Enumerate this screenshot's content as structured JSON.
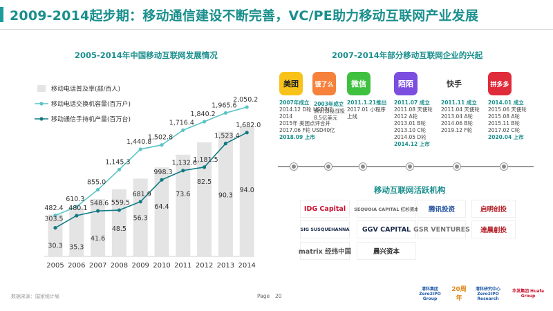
{
  "header": {
    "title": "2009-2014起步期：移动通信建设不断完善，VC/PE助力移动互联网产业发展"
  },
  "left": {
    "section_title": "2005-2014年中国移动互联网发展情况"
  },
  "right": {
    "section_title": "2007-2014年部分移动互联网企业的兴起",
    "investors_title": "移动互联网活跃机构"
  },
  "chart_data": {
    "type": "bar",
    "categories": [
      "2005",
      "2006",
      "2007",
      "2008",
      "2009",
      "2010",
      "2011",
      "2012",
      "2013",
      "2014"
    ],
    "series": [
      {
        "name": "移动电话普及率(部/百人)",
        "kind": "bar",
        "values": [
          30.3,
          35.3,
          41.6,
          48.5,
          56.3,
          64.4,
          73.6,
          82.5,
          90.3,
          94.0
        ]
      },
      {
        "name": "移动电话交换机容量(百万户)",
        "kind": "line",
        "values": [
          482.4,
          610.3,
          855.0,
          1145.3,
          1440.8,
          1502.8,
          1716.4,
          1840.2,
          1965.6,
          2050.2
        ]
      },
      {
        "name": "移动通信手持机产量(百万台)",
        "kind": "line",
        "values": [
          303.5,
          480.1,
          548.6,
          559.5,
          681.9,
          998.3,
          1132.6,
          1181.5,
          1523.4,
          1682.0
        ]
      }
    ],
    "value_labels": {
      "bars": [
        "30.3",
        "35.3",
        "41.6",
        "48.5",
        "56.3",
        "64.4",
        "73.6",
        "82.5",
        "90.3",
        "94.0"
      ],
      "line1": [
        "482.4",
        "610.3",
        "855.0",
        "1,145.3",
        "1,440.8",
        "1,502.8",
        "1,716.4",
        "1,840.2",
        "1,965.6",
        "2,050.2"
      ],
      "line2": [
        "303.5",
        "480.1",
        "548.6",
        "559.5",
        "681.9",
        "998.3",
        "1,132.6",
        "1,181.5",
        "1,523.4",
        "1,682.0"
      ]
    },
    "legend_position": "top-left",
    "grid": false,
    "colors": {
      "bar": "#e4e4e4",
      "line1": "#5cc4c7",
      "line2": "#137a83"
    }
  },
  "companies": [
    {
      "name": "美团",
      "logo_text": "美团",
      "color": "#f8c21a",
      "text_color": "#222222",
      "head": "2007年成立",
      "lines": [
        "2014.12 D轮 USD7亿",
        "2014",
        "2015年 美团点评合并",
        "2017.06 F轮 USD40亿"
      ],
      "foot": "2018.09 上市"
    },
    {
      "name": "饿了么",
      "logo_text": "饿了么",
      "color": "#f5813b",
      "text_color": "#ffffff",
      "head": "2003年成立",
      "lines": [
        "腾讯領投战投",
        "8.5亿美元"
      ],
      "foot": ""
    },
    {
      "name": "微信",
      "logo_text": "微信",
      "color": "#3fc13f",
      "text_color": "#ffffff",
      "head": "2011.1.21推出",
      "lines": [
        "2017.01 小程序",
        "上线"
      ],
      "foot": ""
    },
    {
      "name": "陌陌",
      "logo_text": "陌陌",
      "color": "#7c4ee0",
      "text_color": "#ffffff",
      "head": "2011.07 成立",
      "lines": [
        "2011.08 天使轮",
        "2012 A轮",
        "2013.01 B轮",
        "2013.10 C轮",
        "2014.05 D轮"
      ],
      "foot": "2014.12 上市"
    },
    {
      "name": "快手",
      "logo_text": "快手",
      "color": "#ffffff",
      "text_color": "#333333",
      "head": "2011.11 成立",
      "lines": [
        "2011.04 天使轮",
        "2013.04 A轮",
        "2014.06 B轮",
        "2019.12 F轮"
      ],
      "foot": ""
    },
    {
      "name": "拼多多",
      "logo_text": "拼多多",
      "color": "#e02b3a",
      "text_color": "#ffffff",
      "head": "2014.01 成立",
      "lines": [
        "2015.06 天使轮",
        "2015.08 A轮",
        "2015.11 B轮",
        "2017.02 C轮"
      ],
      "foot": "2020.04 上市"
    }
  ],
  "investors": [
    {
      "name": "IDG Capital",
      "color": "#c8102e"
    },
    {
      "name": "SEQUOIA CAPITAL 红杉资本",
      "color": "#666666"
    },
    {
      "name": "腾讯投资",
      "color": "#1f4fa0"
    },
    {
      "name": "启明创投",
      "color": "#b4232a"
    },
    {
      "name": "SIG SUSQUEHANNA",
      "color": "#1b2a4a"
    },
    {
      "name": "GGV CAPITAL",
      "color": "#1b2a4a"
    },
    {
      "name": "GSR VENTURES",
      "color": "#777777"
    },
    {
      "name": "達晨創投",
      "color": "#b4232a"
    },
    {
      "name": "matrix 经纬中国",
      "color": "#555555"
    },
    {
      "name": "晨兴资本",
      "color": "#333333"
    }
  ],
  "footer": {
    "source": "数据来源：国家统计局",
    "page_label": "Page",
    "page_number": "20",
    "logos": [
      "清科集团 Zero2IPO Group",
      "20周年",
      "清科研究中心 Zero2IPO Research",
      "华发集团 Huafa Group"
    ]
  }
}
